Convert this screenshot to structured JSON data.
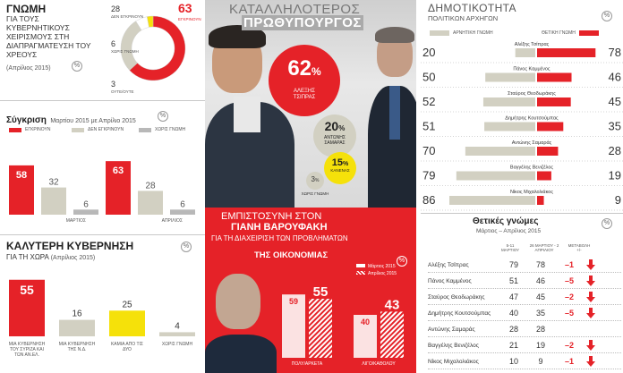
{
  "colors": {
    "red": "#e52228",
    "beige": "#d2d0c2",
    "grey": "#b8b8b8",
    "yellow": "#f5e10a",
    "dark_red": "#c0101a"
  },
  "opinion": {
    "title": "ΓΝΩΜΗ",
    "subtitle": "ΓΙΑ ΤΟΥΣ ΚΥΒΕΡΝΗΤΙΚΟΥΣ ΧΕΙΡΙΣΜΟΥΣ ΣΤΗ ΔΙΑΠΡΑΓΜΑΤΕΥΣΗ ΤΟΥ ΧΡΕΟΥΣ",
    "date": "(Απρίλιος 2015)",
    "pct": "%",
    "donut": [
      {
        "label": "ΕΓΚΡΙΝΟΥΝ",
        "value": 63
      },
      {
        "label": "ΔΕΝ ΕΓΚΡΙΝΟΥΝ",
        "value": 28
      },
      {
        "label": "ΧΩΡΙΣ ΓΝΩΜΗ",
        "value": 6
      },
      {
        "label": "ΟΥΤΕ/ΟΥΤΕ",
        "value": 3
      }
    ]
  },
  "compare": {
    "title": "Σύγκριση",
    "subtitle": "Μαρτίου 2015 με Απρίλιο 2015",
    "pct": "%",
    "legend": [
      "ΕΓΚΡΙΝΟΥΝ",
      "ΔΕΝ ΕΓΚΡΙΝΟΥΝ",
      "ΧΩΡΙΣ ΓΝΩΜΗ"
    ]
  },
  "better_gov": {
    "title": "ΚΑΛΥΤΕΡΗ ΚΥΒΕΡΝΗΣΗ",
    "subtitle": "ΓΙΑ ΤΗ ΧΩΡΑ",
    "date": "(Απρίλιος 2015)",
    "pct": "%"
  },
  "pm": {
    "title_line1": "ΚΑΤΑΛΛΗΛΟΤΕΡΟΣ",
    "title_line2": "ΠΡΩΘΥΠΟΥΡΓΟΣ",
    "bubbles": [
      {
        "value": "62",
        "unit": "%",
        "label": "ΑΛΕΞΗΣ ΤΣΙΠΡΑΣ"
      },
      {
        "value": "20",
        "unit": "%",
        "label": "ΑΝΤΩΝΗΣ ΣΑΜΑΡΑΣ"
      },
      {
        "value": "15",
        "unit": "%",
        "label": "ΚΑΝΕΝΑΣ"
      },
      {
        "value": "3",
        "unit": "%",
        "label": "ΧΩΡΙΣ ΓΝΩΜΗ"
      }
    ]
  },
  "trust": {
    "line1": "ΕΜΠΙΣΤΟΣΥΝΗ ΣΤΟΝ",
    "line2": "ΓΙΑΝΗ ΒΑΡΟΥΦΑΚΗ",
    "line3": "ΓΙΑ ΤΗ ΔΙΑΧΕΙΡΙΣΗ ΤΩΝ ΠΡΟΒΛΗΜΑΤΩΝ",
    "line4": "ΤΗΣ ΟΙΚΟΝΟΜΙΑΣ",
    "legend_march": "Μάρτιος 2015",
    "legend_april": "Απρίλιος 2015",
    "pct": "%"
  },
  "popularity": {
    "title": "ΔΗΜΟΤΙΚΟΤΗΤΑ",
    "subtitle": "ΠΟΛΙΤΙΚΩΝ ΑΡΧΗΓΩΝ",
    "pct": "%",
    "legend_neg": "ΑΡΝΗΤΙΚΗ ΓΝΩΜΗ",
    "legend_pos": "ΘΕΤΙΚΗ ΓΝΩΜΗ"
  },
  "positive": {
    "title": "Θετικές γνώμες",
    "subtitle": "Μάρτιος – Απρίλιος 2015",
    "pct": "%",
    "col1": "5-11 ΜΑΡΤΙΟΥ",
    "col2": "26 ΜΑΡΤΙΟΥ - 2 ΑΠΡΙΛΙΟΥ",
    "col3": "ΜΕΤΑΒΟΛΗ +/-",
    "rows": [
      {
        "name": "Αλέξης Τσίπρας",
        "m": "79",
        "a": "78",
        "d": "–1",
        "arrow": true
      },
      {
        "name": "Πάνος Καμμένος",
        "m": "51",
        "a": "46",
        "d": "–5",
        "arrow": true
      },
      {
        "name": "Σταύρος Θεοδωράκης",
        "m": "47",
        "a": "45",
        "d": "–2",
        "arrow": true
      },
      {
        "name": "Δημήτρης Κουτσούμπας",
        "m": "40",
        "a": "35",
        "d": "–5",
        "arrow": true
      },
      {
        "name": "Αντώνης Σαμαράς",
        "m": "28",
        "a": "28",
        "d": "",
        "arrow": false
      },
      {
        "name": "Βαγγέλης Βενιζέλος",
        "m": "21",
        "a": "19",
        "d": "–2",
        "arrow": true
      },
      {
        "name": "Νίκος Μιχαλολιάκος",
        "m": "10",
        "a": "9",
        "d": "–1",
        "arrow": true
      }
    ]
  },
  "chart_data": [
    {
      "type": "pie",
      "title": "ΓΝΩΜΗ",
      "categories": [
        "ΕΓΚΡΙΝΟΥΝ",
        "ΔΕΝ ΕΓΚΡΙΝΟΥΝ",
        "ΧΩΡΙΣ ΓΝΩΜΗ",
        "ΟΥΤΕ/ΟΥΤΕ"
      ],
      "values": [
        63,
        28,
        6,
        3
      ]
    },
    {
      "type": "bar",
      "title": "Σύγκριση",
      "categories": [
        "ΜΑΡΤΙΟΣ",
        "ΑΠΡΙΛΙΟΣ"
      ],
      "series": [
        {
          "name": "ΕΓΚΡΙΝΟΥΝ",
          "values": [
            58,
            63
          ]
        },
        {
          "name": "ΔΕΝ ΕΓΚΡΙΝΟΥΝ",
          "values": [
            32,
            28
          ]
        },
        {
          "name": "ΧΩΡΙΣ ΓΝΩΜΗ",
          "values": [
            6,
            6
          ]
        }
      ]
    },
    {
      "type": "bar",
      "title": "ΚΑΛΥΤΕΡΗ ΚΥΒΕΡΝΗΣΗ",
      "categories": [
        "ΜΙΑ ΚΥΒΕΡΝΗΣΗ ΤΟΥ ΣΥΡΙΖΑ ΚΑΙ ΤΩΝ ΑΝ.ΕΛ.",
        "ΜΙΑ ΚΥΒΕΡΝΗΣΗ ΤΗΣ Ν.Δ.",
        "ΚΑΜΙΑ ΑΠΟ ΤΙΣ ΔΥΟ",
        "ΧΩΡΙΣ ΓΝΩΜΗ"
      ],
      "values": [
        55,
        16,
        25,
        4
      ]
    },
    {
      "type": "bar",
      "title": "ΕΜΠΙΣΤΟΣΥΝΗ ΣΤΟΝ ΓΙΑΝΗ ΒΑΡΟΥΦΑΚΗ",
      "categories": [
        "ΠΟΛΥ/ΑΡΚΕΤΑ",
        "ΛΙΓΟ/ΚΑΘΟΛΟΥ"
      ],
      "series": [
        {
          "name": "Μάρτιος 2015",
          "values": [
            59,
            40
          ]
        },
        {
          "name": "Απρίλιος 2015",
          "values": [
            55,
            43
          ]
        }
      ]
    },
    {
      "type": "bar",
      "title": "ΔΗΜΟΤΙΚΟΤΗΤΑ",
      "categories": [
        "Αλέξης Τσίπρας",
        "Πάνος Καμμένος",
        "Σταύρος Θεοδωράκης",
        "Δημήτρης Κουτσούμπας",
        "Αντώνης Σαμαράς",
        "Βαγγέλης Βενιζέλος",
        "Νίκος Μιχαλολιάκος"
      ],
      "series": [
        {
          "name": "ΑΡΝΗΤΙΚΗ ΓΝΩΜΗ",
          "values": [
            20,
            50,
            52,
            51,
            70,
            79,
            86
          ]
        },
        {
          "name": "ΘΕΤΙΚΗ ΓΝΩΜΗ",
          "values": [
            78,
            46,
            45,
            35,
            28,
            19,
            9
          ]
        }
      ]
    }
  ]
}
